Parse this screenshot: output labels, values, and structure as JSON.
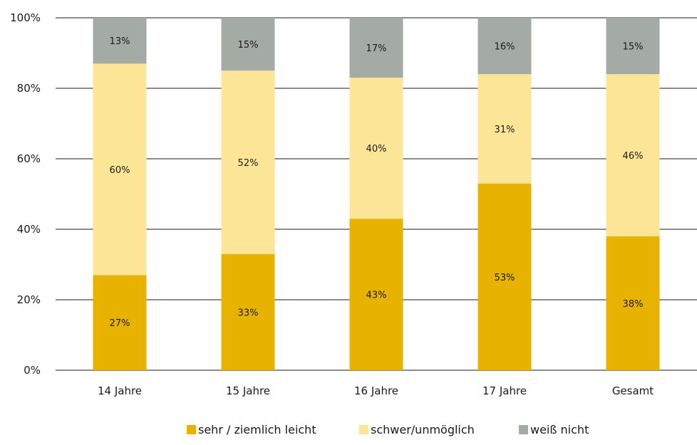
{
  "chart_data": {
    "type": "bar",
    "stacked": true,
    "normalized": true,
    "categories": [
      "14 Jahre",
      "15 Jahre",
      "16 Jahre",
      "17 Jahre",
      "Gesamt"
    ],
    "series": [
      {
        "name": "sehr / ziemlich leicht",
        "values": [
          27,
          33,
          43,
          53,
          38
        ],
        "labels": [
          "27%",
          "33%",
          "43%",
          "53%",
          "38%"
        ],
        "color": "#e8b300"
      },
      {
        "name": "schwer/unmöglich",
        "values": [
          60,
          52,
          40,
          31,
          46
        ],
        "labels": [
          "60%",
          "52%",
          "40%",
          "31%",
          "46%"
        ],
        "color": "#fce596"
      },
      {
        "name": "weiß nicht",
        "values": [
          13,
          15,
          17,
          16,
          15
        ],
        "labels": [
          "13%",
          "15%",
          "17%",
          "16%",
          "15%"
        ],
        "color": "#a4aaa4"
      }
    ],
    "yticks": [
      {
        "value": 0,
        "label": "0%"
      },
      {
        "value": 20,
        "label": "20%"
      },
      {
        "value": 40,
        "label": "40%"
      },
      {
        "value": 60,
        "label": "60%"
      },
      {
        "value": 80,
        "label": "80%"
      },
      {
        "value": 100,
        "label": "100%"
      }
    ],
    "ylim": [
      0,
      100
    ],
    "grid": true,
    "legend_position": "bottom-center",
    "title": "",
    "xlabel": "",
    "ylabel": ""
  }
}
